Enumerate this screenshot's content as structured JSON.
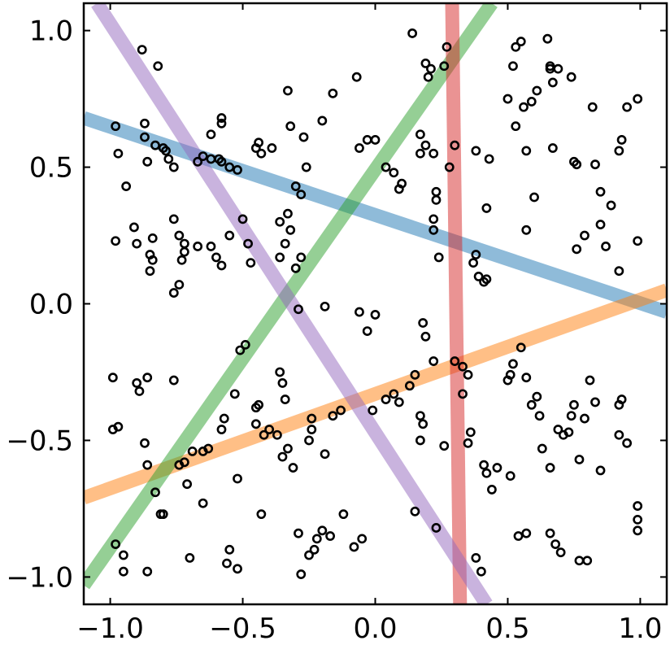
{
  "chart_data": {
    "type": "scatter",
    "title": "",
    "xlabel": "",
    "ylabel": "",
    "xlim": [
      -1.1,
      1.1
    ],
    "ylim": [
      -1.1,
      1.1
    ],
    "grid": false,
    "legend": "none",
    "x_ticks": [
      {
        "value": -1.0,
        "label": "−1.0"
      },
      {
        "value": -0.5,
        "label": "−0.5"
      },
      {
        "value": 0.0,
        "label": "0.0"
      },
      {
        "value": 0.5,
        "label": "0.5"
      },
      {
        "value": 1.0,
        "label": "1.0"
      }
    ],
    "y_ticks": [
      {
        "value": 1.0,
        "label": "1.0"
      },
      {
        "value": 0.5,
        "label": "0.5"
      },
      {
        "value": 0.0,
        "label": "0.0"
      },
      {
        "value": -0.5,
        "label": "−0.5"
      },
      {
        "value": -1.0,
        "label": "−1.0"
      }
    ],
    "fitted_lines": [
      {
        "color": "#1f77b4",
        "points": [
          [
            -1.1,
            0.68
          ],
          [
            1.1,
            -0.03
          ]
        ]
      },
      {
        "color": "#ff7f0e",
        "points": [
          [
            -1.1,
            -0.71
          ],
          [
            1.1,
            0.05
          ]
        ]
      },
      {
        "color": "#2ca02c",
        "points": [
          [
            -1.1,
            -1.03
          ],
          [
            0.44,
            1.1
          ]
        ]
      },
      {
        "color": "#d62728",
        "points": [
          [
            0.29,
            1.1
          ],
          [
            0.32,
            -1.1
          ]
        ]
      },
      {
        "color": "#9467bd",
        "points": [
          [
            -1.05,
            1.1
          ],
          [
            0.42,
            -1.1
          ]
        ]
      }
    ],
    "series": [
      {
        "marker": "open-circle",
        "color": "#000000",
        "points": [
          [
            -0.98,
            0.65
          ],
          [
            -0.97,
            0.55
          ],
          [
            -0.94,
            0.43
          ],
          [
            -0.98,
            0.23
          ],
          [
            -0.91,
            0.28
          ],
          [
            -0.9,
            0.22
          ],
          [
            -0.88,
            0.93
          ],
          [
            -0.87,
            0.66
          ],
          [
            -0.87,
            0.61
          ],
          [
            -0.86,
            0.52
          ],
          [
            -0.84,
            0.24
          ],
          [
            -0.85,
            0.18
          ],
          [
            -0.84,
            0.16
          ],
          [
            -0.85,
            0.12
          ],
          [
            -0.83,
            0.58
          ],
          [
            -0.8,
            0.57
          ],
          [
            -0.79,
            0.56
          ],
          [
            -0.78,
            0.53
          ],
          [
            -0.76,
            0.5
          ],
          [
            -0.76,
            0.31
          ],
          [
            -0.74,
            0.25
          ],
          [
            -0.72,
            0.22
          ],
          [
            -0.72,
            0.19
          ],
          [
            -0.73,
            0.16
          ],
          [
            -0.74,
            0.07
          ],
          [
            -0.76,
            0.04
          ],
          [
            -0.82,
            0.87
          ],
          [
            -0.67,
            0.52
          ],
          [
            -0.65,
            0.54
          ],
          [
            -0.62,
            0.53
          ],
          [
            -0.59,
            0.53
          ],
          [
            -0.58,
            0.52
          ],
          [
            -0.55,
            0.5
          ],
          [
            -0.52,
            0.49
          ],
          [
            -0.58,
            0.66
          ],
          [
            -0.58,
            0.68
          ],
          [
            -0.62,
            0.62
          ],
          [
            -0.67,
            0.21
          ],
          [
            -0.62,
            0.21
          ],
          [
            -0.6,
            0.17
          ],
          [
            -0.58,
            0.14
          ],
          [
            -0.55,
            0.25
          ],
          [
            -0.5,
            0.31
          ],
          [
            -0.48,
            0.22
          ],
          [
            -0.47,
            0.15
          ],
          [
            -0.45,
            0.57
          ],
          [
            -0.44,
            0.59
          ],
          [
            -0.43,
            0.55
          ],
          [
            -0.39,
            0.57
          ],
          [
            -0.33,
            0.78
          ],
          [
            -0.32,
            0.65
          ],
          [
            -0.27,
            0.61
          ],
          [
            -0.26,
            0.5
          ],
          [
            -0.28,
            0.4
          ],
          [
            -0.3,
            0.43
          ],
          [
            -0.33,
            0.33
          ],
          [
            -0.36,
            0.3
          ],
          [
            -0.34,
            0.22
          ],
          [
            -0.32,
            0.27
          ],
          [
            -0.36,
            0.17
          ],
          [
            -0.28,
            0.17
          ],
          [
            -0.3,
            0.13
          ],
          [
            -0.2,
            0.67
          ],
          [
            -0.16,
            0.77
          ],
          [
            -0.07,
            0.83
          ],
          [
            -0.06,
            0.57
          ],
          [
            -0.03,
            0.6
          ],
          [
            0.0,
            0.6
          ],
          [
            0.04,
            0.5
          ],
          [
            0.07,
            0.48
          ],
          [
            0.09,
            0.42
          ],
          [
            0.1,
            0.44
          ],
          [
            0.14,
            0.99
          ],
          [
            0.19,
            0.88
          ],
          [
            0.21,
            0.86
          ],
          [
            0.2,
            0.83
          ],
          [
            0.26,
            0.87
          ],
          [
            0.27,
            0.94
          ],
          [
            0.17,
            0.62
          ],
          [
            0.17,
            0.55
          ],
          [
            0.19,
            0.58
          ],
          [
            0.22,
            0.55
          ],
          [
            0.23,
            0.41
          ],
          [
            0.23,
            0.38
          ],
          [
            0.22,
            0.31
          ],
          [
            0.22,
            0.27
          ],
          [
            0.24,
            0.17
          ],
          [
            0.3,
            0.58
          ],
          [
            0.28,
            0.5
          ],
          [
            0.38,
            0.56
          ],
          [
            0.43,
            0.53
          ],
          [
            0.42,
            0.35
          ],
          [
            0.38,
            0.18
          ],
          [
            0.37,
            0.15
          ],
          [
            0.39,
            0.1
          ],
          [
            0.41,
            0.08
          ],
          [
            0.42,
            0.09
          ],
          [
            0.52,
            0.87
          ],
          [
            0.53,
            0.94
          ],
          [
            0.55,
            0.96
          ],
          [
            0.5,
            0.75
          ],
          [
            0.56,
            0.72
          ],
          [
            0.59,
            0.74
          ],
          [
            0.61,
            0.78
          ],
          [
            0.53,
            0.65
          ],
          [
            0.57,
            0.56
          ],
          [
            0.6,
            0.39
          ],
          [
            0.57,
            0.27
          ],
          [
            0.65,
            0.97
          ],
          [
            0.66,
            0.86
          ],
          [
            0.67,
            0.81
          ],
          [
            0.66,
            0.87
          ],
          [
            0.67,
            0.57
          ],
          [
            0.69,
            0.86
          ],
          [
            0.74,
            0.83
          ],
          [
            0.75,
            0.52
          ],
          [
            0.76,
            0.51
          ],
          [
            0.83,
            0.51
          ],
          [
            0.85,
            0.41
          ],
          [
            0.79,
            0.25
          ],
          [
            0.76,
            0.2
          ],
          [
            0.85,
            0.29
          ],
          [
            0.87,
            0.21
          ],
          [
            0.89,
            0.36
          ],
          [
            0.92,
            0.56
          ],
          [
            0.93,
            0.6
          ],
          [
            0.95,
            0.72
          ],
          [
            0.99,
            0.75
          ],
          [
            0.82,
            0.72
          ],
          [
            0.92,
            0.12
          ],
          [
            0.99,
            0.23
          ],
          [
            -0.99,
            -0.27
          ],
          [
            -0.99,
            -0.46
          ],
          [
            -0.97,
            -0.45
          ],
          [
            -0.9,
            -0.29
          ],
          [
            -0.89,
            -0.32
          ],
          [
            -0.86,
            -0.27
          ],
          [
            -0.87,
            -0.51
          ],
          [
            -0.86,
            -0.59
          ],
          [
            -0.83,
            -0.69
          ],
          [
            -0.81,
            -0.77
          ],
          [
            -0.8,
            -0.77
          ],
          [
            -0.76,
            -0.28
          ],
          [
            -0.74,
            -0.59
          ],
          [
            -0.72,
            -0.58
          ],
          [
            -0.71,
            -0.66
          ],
          [
            -0.69,
            -0.54
          ],
          [
            -0.65,
            -0.54
          ],
          [
            -0.63,
            -0.53
          ],
          [
            -0.65,
            -0.73
          ],
          [
            -0.58,
            -0.46
          ],
          [
            -0.57,
            -0.42
          ],
          [
            -0.53,
            -0.33
          ],
          [
            -0.52,
            -0.64
          ],
          [
            -0.51,
            -0.17
          ],
          [
            -0.49,
            -0.15
          ],
          [
            -0.45,
            -0.38
          ],
          [
            -0.44,
            -0.37
          ],
          [
            -0.45,
            -0.44
          ],
          [
            -0.42,
            -0.48
          ],
          [
            -0.4,
            -0.46
          ],
          [
            -0.37,
            -0.48
          ],
          [
            -0.34,
            -0.35
          ],
          [
            -0.35,
            -0.29
          ],
          [
            -0.36,
            -0.25
          ],
          [
            -0.33,
            -0.53
          ],
          [
            -0.35,
            -0.56
          ],
          [
            -0.31,
            -0.6
          ],
          [
            -0.29,
            -0.02
          ],
          [
            -0.24,
            -0.42
          ],
          [
            -0.25,
            -0.5
          ],
          [
            -0.24,
            -0.46
          ],
          [
            -0.19,
            -0.55
          ],
          [
            -0.19,
            -0.01
          ],
          [
            -0.16,
            -0.41
          ],
          [
            -0.13,
            -0.39
          ],
          [
            -0.06,
            -0.03
          ],
          [
            -0.03,
            -0.1
          ],
          [
            0.0,
            -0.04
          ],
          [
            -0.01,
            -0.39
          ],
          [
            0.04,
            -0.35
          ],
          [
            0.07,
            -0.33
          ],
          [
            0.09,
            -0.36
          ],
          [
            0.13,
            -0.3
          ],
          [
            0.15,
            -0.26
          ],
          [
            0.18,
            -0.07
          ],
          [
            0.19,
            -0.12
          ],
          [
            0.22,
            -0.21
          ],
          [
            0.17,
            -0.41
          ],
          [
            0.18,
            -0.44
          ],
          [
            0.17,
            -0.5
          ],
          [
            0.26,
            -0.52
          ],
          [
            0.3,
            -0.21
          ],
          [
            0.33,
            -0.23
          ],
          [
            0.35,
            -0.26
          ],
          [
            0.33,
            -0.33
          ],
          [
            0.36,
            -0.47
          ],
          [
            0.35,
            -0.51
          ],
          [
            0.41,
            -0.59
          ],
          [
            0.42,
            -0.62
          ],
          [
            0.44,
            -0.68
          ],
          [
            0.51,
            -0.63
          ],
          [
            0.46,
            -0.6
          ],
          [
            0.5,
            -0.28
          ],
          [
            0.51,
            -0.26
          ],
          [
            0.55,
            -0.16
          ],
          [
            0.52,
            -0.22
          ],
          [
            0.57,
            -0.27
          ],
          [
            0.59,
            -0.37
          ],
          [
            0.61,
            -0.34
          ],
          [
            0.62,
            -0.41
          ],
          [
            0.63,
            -0.53
          ],
          [
            0.66,
            -0.6
          ],
          [
            0.69,
            -0.46
          ],
          [
            0.71,
            -0.48
          ],
          [
            0.73,
            -0.47
          ],
          [
            0.74,
            -0.41
          ],
          [
            0.75,
            -0.37
          ],
          [
            0.79,
            -0.42
          ],
          [
            0.77,
            -0.57
          ],
          [
            0.81,
            -0.28
          ],
          [
            0.83,
            -0.36
          ],
          [
            0.85,
            -0.61
          ],
          [
            0.92,
            -0.37
          ],
          [
            0.92,
            -0.48
          ],
          [
            0.95,
            -0.51
          ],
          [
            0.93,
            -0.35
          ],
          [
            0.99,
            -0.74
          ],
          [
            0.99,
            -0.79
          ],
          [
            0.99,
            -0.83
          ],
          [
            0.66,
            -0.84
          ],
          [
            0.68,
            -0.88
          ],
          [
            0.7,
            -0.91
          ],
          [
            0.77,
            -0.94
          ],
          [
            0.8,
            -0.94
          ],
          [
            0.54,
            -0.85
          ],
          [
            0.57,
            -0.84
          ],
          [
            0.38,
            -0.93
          ],
          [
            0.4,
            -0.98
          ],
          [
            0.23,
            -0.82
          ],
          [
            0.15,
            -0.76
          ],
          [
            -0.05,
            -0.86
          ],
          [
            -0.08,
            -0.89
          ],
          [
            -0.12,
            -0.77
          ],
          [
            -0.17,
            -0.85
          ],
          [
            -0.2,
            -0.83
          ],
          [
            -0.22,
            -0.86
          ],
          [
            -0.23,
            -0.9
          ],
          [
            -0.25,
            -0.92
          ],
          [
            -0.28,
            -0.99
          ],
          [
            -0.29,
            -0.84
          ],
          [
            -0.43,
            -0.77
          ],
          [
            -0.55,
            -0.9
          ],
          [
            -0.56,
            -0.95
          ],
          [
            -0.7,
            -0.93
          ],
          [
            -0.86,
            -0.98
          ],
          [
            -0.95,
            -0.98
          ],
          [
            -0.95,
            -0.92
          ],
          [
            -0.98,
            -0.88
          ],
          [
            -0.52,
            -0.97
          ]
        ]
      }
    ]
  }
}
